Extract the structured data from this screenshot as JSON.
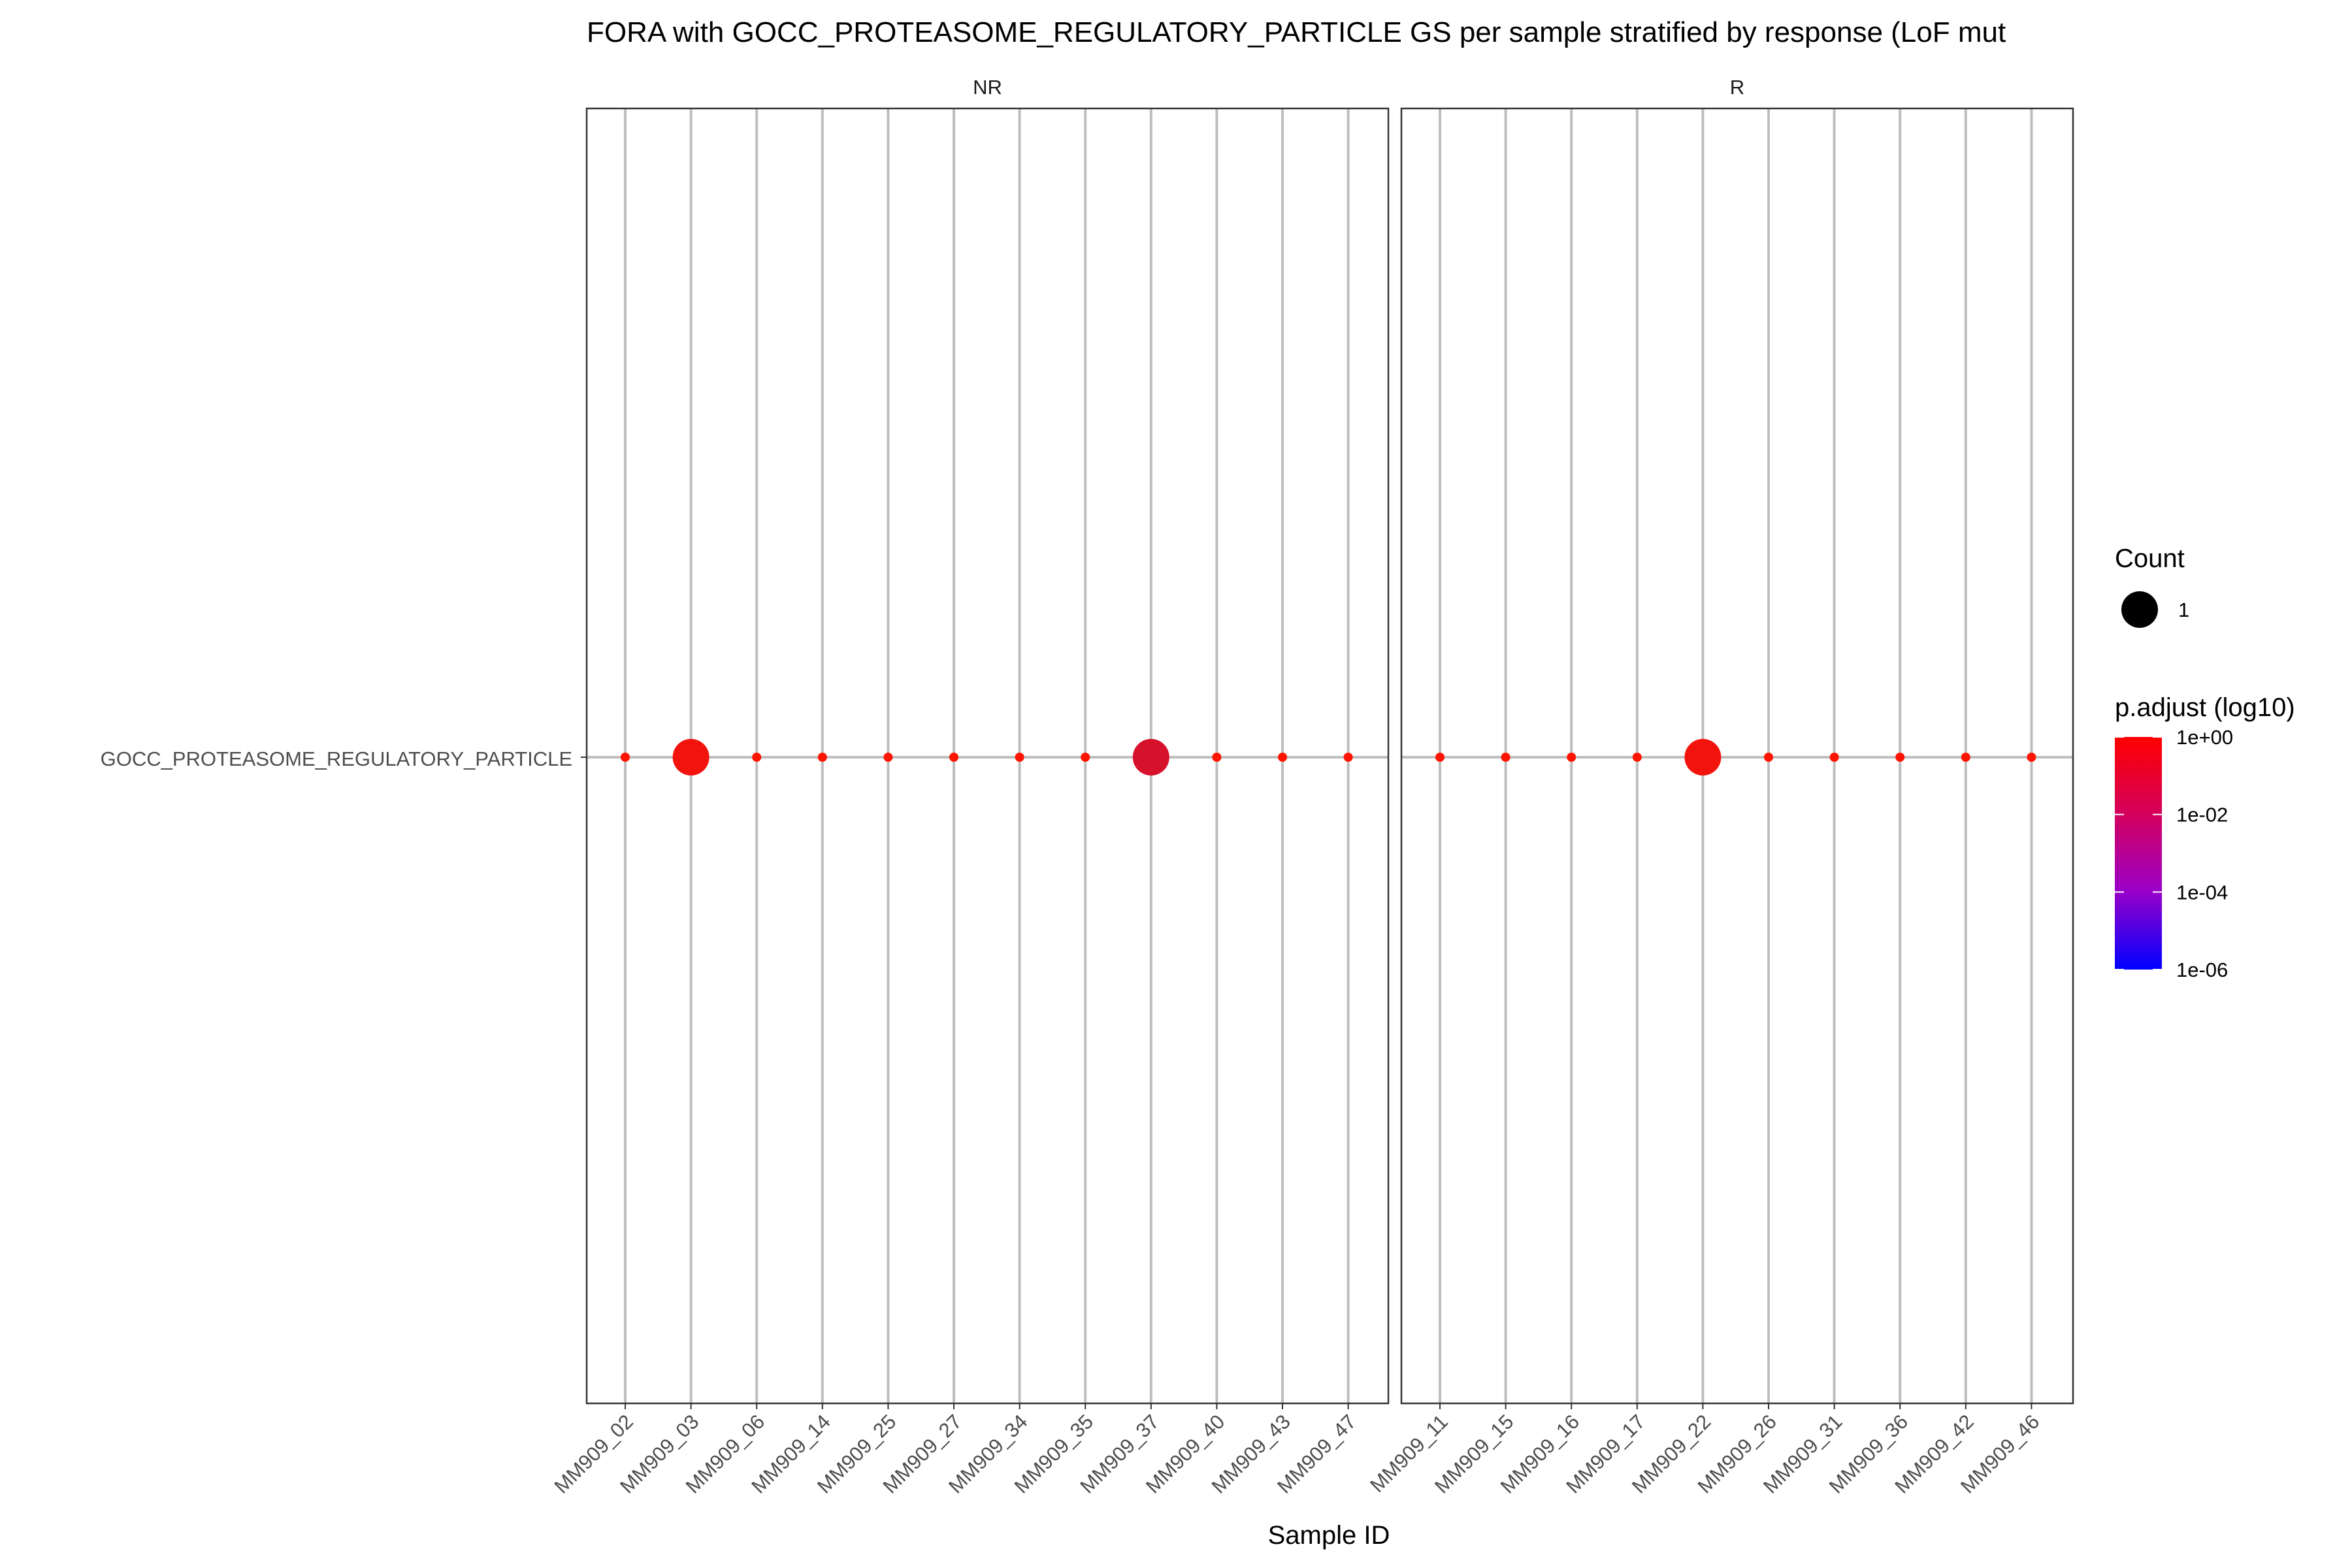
{
  "chart_data": {
    "type": "scatter",
    "title": "FORA with GOCC_PROTEASOME_REGULATORY_PARTICLE GS per sample stratified by response (LoF mut",
    "xlabel": "Sample ID",
    "ylabel": "",
    "y_categories": [
      "GOCC_PROTEASOME_REGULATORY_PARTICLE"
    ],
    "facets": [
      {
        "label": "NR",
        "categories": [
          "MM909_02",
          "MM909_03",
          "MM909_06",
          "MM909_14",
          "MM909_25",
          "MM909_27",
          "MM909_34",
          "MM909_35",
          "MM909_37",
          "MM909_40",
          "MM909_43",
          "MM909_47"
        ],
        "points": [
          {
            "x": "MM909_02",
            "y": "GOCC_PROTEASOME_REGULATORY_PARTICLE",
            "size": "small",
            "p_adjust": 1.0
          },
          {
            "x": "MM909_03",
            "y": "GOCC_PROTEASOME_REGULATORY_PARTICLE",
            "size": "large",
            "count": 1,
            "p_adjust": 0.5
          },
          {
            "x": "MM909_06",
            "y": "GOCC_PROTEASOME_REGULATORY_PARTICLE",
            "size": "small",
            "p_adjust": 1.0
          },
          {
            "x": "MM909_14",
            "y": "GOCC_PROTEASOME_REGULATORY_PARTICLE",
            "size": "small",
            "p_adjust": 1.0
          },
          {
            "x": "MM909_25",
            "y": "GOCC_PROTEASOME_REGULATORY_PARTICLE",
            "size": "small",
            "p_adjust": 1.0
          },
          {
            "x": "MM909_27",
            "y": "GOCC_PROTEASOME_REGULATORY_PARTICLE",
            "size": "small",
            "p_adjust": 1.0
          },
          {
            "x": "MM909_34",
            "y": "GOCC_PROTEASOME_REGULATORY_PARTICLE",
            "size": "small",
            "p_adjust": 1.0
          },
          {
            "x": "MM909_35",
            "y": "GOCC_PROTEASOME_REGULATORY_PARTICLE",
            "size": "small",
            "p_adjust": 1.0
          },
          {
            "x": "MM909_37",
            "y": "GOCC_PROTEASOME_REGULATORY_PARTICLE",
            "size": "large",
            "count": 1,
            "p_adjust": 0.1
          },
          {
            "x": "MM909_40",
            "y": "GOCC_PROTEASOME_REGULATORY_PARTICLE",
            "size": "small",
            "p_adjust": 1.0
          },
          {
            "x": "MM909_43",
            "y": "GOCC_PROTEASOME_REGULATORY_PARTICLE",
            "size": "small",
            "p_adjust": 1.0
          },
          {
            "x": "MM909_47",
            "y": "GOCC_PROTEASOME_REGULATORY_PARTICLE",
            "size": "small",
            "p_adjust": 1.0
          }
        ]
      },
      {
        "label": "R",
        "categories": [
          "MM909_11",
          "MM909_15",
          "MM909_16",
          "MM909_17",
          "MM909_22",
          "MM909_26",
          "MM909_31",
          "MM909_36",
          "MM909_42",
          "MM909_46"
        ],
        "points": [
          {
            "x": "MM909_11",
            "y": "GOCC_PROTEASOME_REGULATORY_PARTICLE",
            "size": "small",
            "p_adjust": 1.0
          },
          {
            "x": "MM909_15",
            "y": "GOCC_PROTEASOME_REGULATORY_PARTICLE",
            "size": "small",
            "p_adjust": 1.0
          },
          {
            "x": "MM909_16",
            "y": "GOCC_PROTEASOME_REGULATORY_PARTICLE",
            "size": "small",
            "p_adjust": 1.0
          },
          {
            "x": "MM909_17",
            "y": "GOCC_PROTEASOME_REGULATORY_PARTICLE",
            "size": "small",
            "p_adjust": 1.0
          },
          {
            "x": "MM909_22",
            "y": "GOCC_PROTEASOME_REGULATORY_PARTICLE",
            "size": "large",
            "count": 1,
            "p_adjust": 0.5
          },
          {
            "x": "MM909_26",
            "y": "GOCC_PROTEASOME_REGULATORY_PARTICLE",
            "size": "small",
            "p_adjust": 1.0
          },
          {
            "x": "MM909_31",
            "y": "GOCC_PROTEASOME_REGULATORY_PARTICLE",
            "size": "small",
            "p_adjust": 1.0
          },
          {
            "x": "MM909_36",
            "y": "GOCC_PROTEASOME_REGULATORY_PARTICLE",
            "size": "small",
            "p_adjust": 1.0
          },
          {
            "x": "MM909_42",
            "y": "GOCC_PROTEASOME_REGULATORY_PARTICLE",
            "size": "small",
            "p_adjust": 1.0
          },
          {
            "x": "MM909_46",
            "y": "GOCC_PROTEASOME_REGULATORY_PARTICLE",
            "size": "small",
            "p_adjust": 1.0
          }
        ]
      }
    ],
    "legend": {
      "size": {
        "title": "Count",
        "entries": [
          {
            "label": "1",
            "value": 1
          }
        ]
      },
      "color": {
        "title": "p.adjust (log10)",
        "scale": "log10",
        "ticks": [
          "1e+00",
          "1e-02",
          "1e-04",
          "1e-06"
        ],
        "tick_values": [
          1,
          0.01,
          0.0001,
          1e-06
        ],
        "color_high": "#FF0000",
        "color_low": "#0000FF"
      },
      "placement": "right"
    },
    "grid": true,
    "colors": {
      "panel_border": "#333333",
      "grid_line": "#BEBEBE",
      "text": "#000000",
      "tick_text": "#4D4D4D"
    }
  }
}
